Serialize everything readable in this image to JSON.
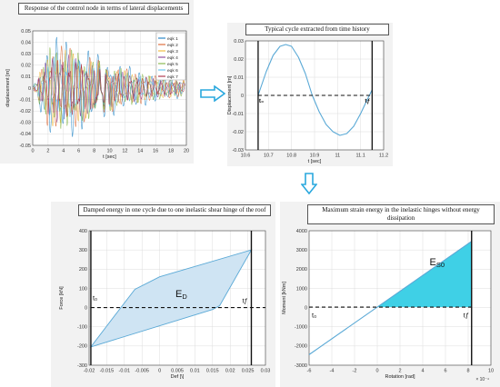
{
  "panels": {
    "time_history": {
      "title": "Response of the control node in terms of lateral displacements",
      "ylabel": "displacement [m]",
      "xlabel": "t [sec]",
      "legend": [
        "eqk 1",
        "eqk 2",
        "eqk 3",
        "eqk 4",
        "eqk 5",
        "eqk 6",
        "eqk 7"
      ]
    },
    "typical_cycle": {
      "title": "Typical cycle extracted from time history",
      "ylabel": "Displacement [m]",
      "xlabel": "t [sec]",
      "t0_label": "t₀",
      "tf_label": "tƒ"
    },
    "damped_energy": {
      "title": "Damped energy in one cycle due to one inelastic shear hinge of the roof",
      "ylabel": "Force [kN]",
      "xlabel": "Def [\\]",
      "area_label": "E",
      "area_sub": "D",
      "t0_label": "t₀",
      "tf_label": "tƒ"
    },
    "strain_energy": {
      "title": "Maximum strain energy in the inelastic hinges without energy dissipation",
      "ylabel": "Moment [kNm]",
      "xlabel": "Rotation [rad]",
      "area_label": "E",
      "area_sub": "S0",
      "t0_label": "t₀",
      "tf_label": "tƒ",
      "exponent": "× 10⁻⁴"
    }
  },
  "chart_data": [
    {
      "type": "line",
      "panel": "time_history",
      "xlim": [
        0,
        20
      ],
      "ylim": [
        -0.05,
        0.05
      ],
      "xticks": [
        0,
        2,
        4,
        6,
        8,
        10,
        12,
        14,
        16,
        18,
        20
      ],
      "yticks": [
        -0.05,
        -0.04,
        -0.03,
        -0.02,
        -0.01,
        0,
        0.01,
        0.02,
        0.03,
        0.04,
        0.05
      ],
      "grid": true,
      "legend_position": "top-right",
      "series": [
        {
          "name": "eqk 1",
          "color": "#0072bd",
          "amplitude": 0.045
        },
        {
          "name": "eqk 2",
          "color": "#d95319",
          "amplitude": 0.038
        },
        {
          "name": "eqk 3",
          "color": "#edb120",
          "amplitude": 0.034
        },
        {
          "name": "eqk 4",
          "color": "#7e2f8e",
          "amplitude": 0.03
        },
        {
          "name": "eqk 5",
          "color": "#77ac30",
          "amplitude": 0.036
        },
        {
          "name": "eqk 6",
          "color": "#4dbeee",
          "amplitude": 0.028
        },
        {
          "name": "eqk 7",
          "color": "#a2142f",
          "amplitude": 0.025
        }
      ]
    },
    {
      "type": "line",
      "panel": "typical_cycle",
      "xlim": [
        10.6,
        11.2
      ],
      "ylim": [
        -0.03,
        0.03
      ],
      "xticks": [
        10.6,
        10.7,
        10.8,
        10.9,
        11,
        11.1,
        11.2
      ],
      "yticks": [
        -0.03,
        -0.02,
        -0.01,
        0,
        0.01,
        0.02,
        0.03
      ],
      "grid": true,
      "x": [
        10.655,
        10.69,
        10.72,
        10.75,
        10.775,
        10.8,
        10.83,
        10.86,
        10.89,
        10.92,
        10.95,
        10.98,
        11.01,
        11.04,
        11.07,
        11.1,
        11.13,
        11.15
      ],
      "y": [
        0.0,
        0.013,
        0.022,
        0.027,
        0.028,
        0.027,
        0.021,
        0.012,
        0.0,
        -0.009,
        -0.016,
        -0.02,
        -0.022,
        -0.021,
        -0.017,
        -0.01,
        -0.002,
        0.003
      ],
      "t0": 10.655,
      "tf": 11.15
    },
    {
      "type": "area",
      "panel": "damped_energy",
      "xlim": [
        -0.02,
        0.03
      ],
      "ylim": [
        -300,
        400
      ],
      "xticks": [
        -0.02,
        -0.015,
        -0.01,
        -0.005,
        0,
        0.005,
        0.01,
        0.015,
        0.02,
        0.025,
        0.03
      ],
      "yticks": [
        -300,
        -200,
        -100,
        0,
        100,
        200,
        300,
        400
      ],
      "grid": true,
      "loop": [
        [
          -0.0195,
          -205
        ],
        [
          -0.011,
          0
        ],
        [
          -0.007,
          95
        ],
        [
          0.0,
          160
        ],
        [
          0.026,
          300
        ],
        [
          0.017,
          10
        ],
        [
          0.015,
          -10
        ],
        [
          -0.0195,
          -205
        ]
      ],
      "t0": -0.0195,
      "tf": 0.026
    },
    {
      "type": "area",
      "panel": "strain_energy",
      "xlim": [
        -6,
        10
      ],
      "ylim": [
        -3000,
        4000
      ],
      "xticks": [
        -6,
        -4,
        -2,
        0,
        2,
        4,
        6,
        8,
        10
      ],
      "yticks": [
        -3000,
        -2000,
        -1000,
        0,
        1000,
        2000,
        3000,
        4000
      ],
      "grid": true,
      "x": [
        -6,
        8.3
      ],
      "y": [
        -2450,
        3450
      ],
      "fill_from_x": 0,
      "t0": -6,
      "tf": 8.3
    }
  ],
  "colors": {
    "light_blue": "#5aa9d6",
    "fill_blue": "#cfe4f3",
    "fill_cyan": "#3fd0e6",
    "arrow": "#2aa8de",
    "panel_bg": "#f2f2f2"
  }
}
